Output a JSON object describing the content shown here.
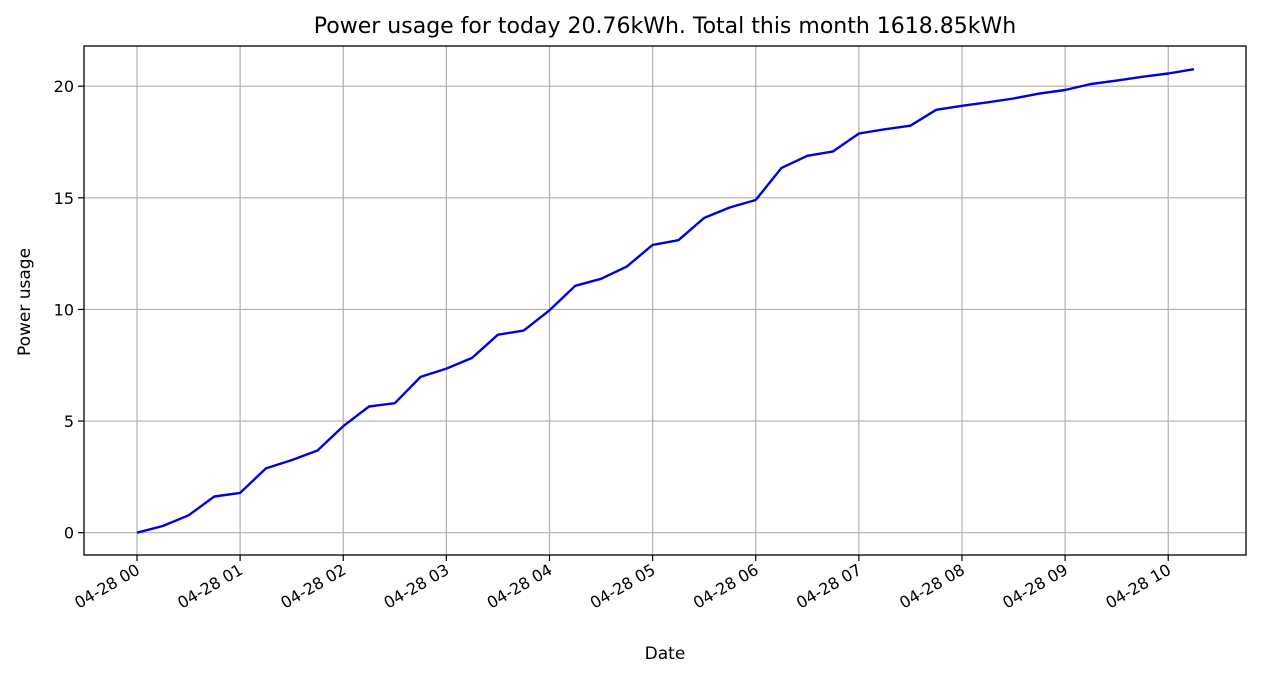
{
  "chart_data": {
    "type": "line",
    "title": "Power usage for today 20.76kWh. Total this month 1618.85kWh",
    "xlabel": "Date",
    "ylabel": "Power usage",
    "grid": true,
    "x_ticks": [
      "04-28 00",
      "04-28 01",
      "04-28 02",
      "04-28 03",
      "04-28 04",
      "04-28 05",
      "04-28 06",
      "04-28 07",
      "04-28 08",
      "04-28 09",
      "04-28 10"
    ],
    "y_ticks": [
      0,
      5,
      10,
      15,
      20
    ],
    "ylim": [
      -1.0,
      21.8
    ],
    "xlim": [
      "04-28 00:00",
      "04-28 10:30"
    ],
    "series": [
      {
        "color": "#0000dd",
        "x": [
          "04-28 00:00",
          "04-28 00:15",
          "04-28 00:30",
          "04-28 00:45",
          "04-28 01:00",
          "04-28 01:15",
          "04-28 01:30",
          "04-28 01:45",
          "04-28 02:00",
          "04-28 02:15",
          "04-28 02:30",
          "04-28 02:45",
          "04-28 03:00",
          "04-28 03:15",
          "04-28 03:30",
          "04-28 03:45",
          "04-28 04:00",
          "04-28 04:15",
          "04-28 04:30",
          "04-28 04:45",
          "04-28 05:00",
          "04-28 05:15",
          "04-28 05:30",
          "04-28 05:45",
          "04-28 06:00",
          "04-28 06:15",
          "04-28 06:30",
          "04-28 06:45",
          "04-28 07:00",
          "04-28 07:15",
          "04-28 07:30",
          "04-28 07:45",
          "04-28 08:00",
          "04-28 08:15",
          "04-28 08:30",
          "04-28 08:45",
          "04-28 09:00",
          "04-28 09:15",
          "04-28 09:30",
          "04-28 09:45",
          "04-28 10:00",
          "04-28 10:15"
        ],
        "y": [
          0.0,
          0.3,
          0.78,
          1.62,
          1.78,
          2.88,
          3.25,
          3.68,
          4.77,
          5.65,
          5.8,
          6.98,
          7.35,
          7.83,
          8.87,
          9.05,
          9.96,
          11.06,
          11.37,
          11.92,
          12.89,
          13.1,
          14.1,
          14.57,
          14.9,
          16.34,
          16.88,
          17.08,
          17.88,
          18.07,
          18.23,
          18.94,
          19.12,
          19.28,
          19.45,
          19.67,
          19.83,
          20.1,
          20.25,
          20.42,
          20.57,
          20.76
        ]
      }
    ]
  }
}
